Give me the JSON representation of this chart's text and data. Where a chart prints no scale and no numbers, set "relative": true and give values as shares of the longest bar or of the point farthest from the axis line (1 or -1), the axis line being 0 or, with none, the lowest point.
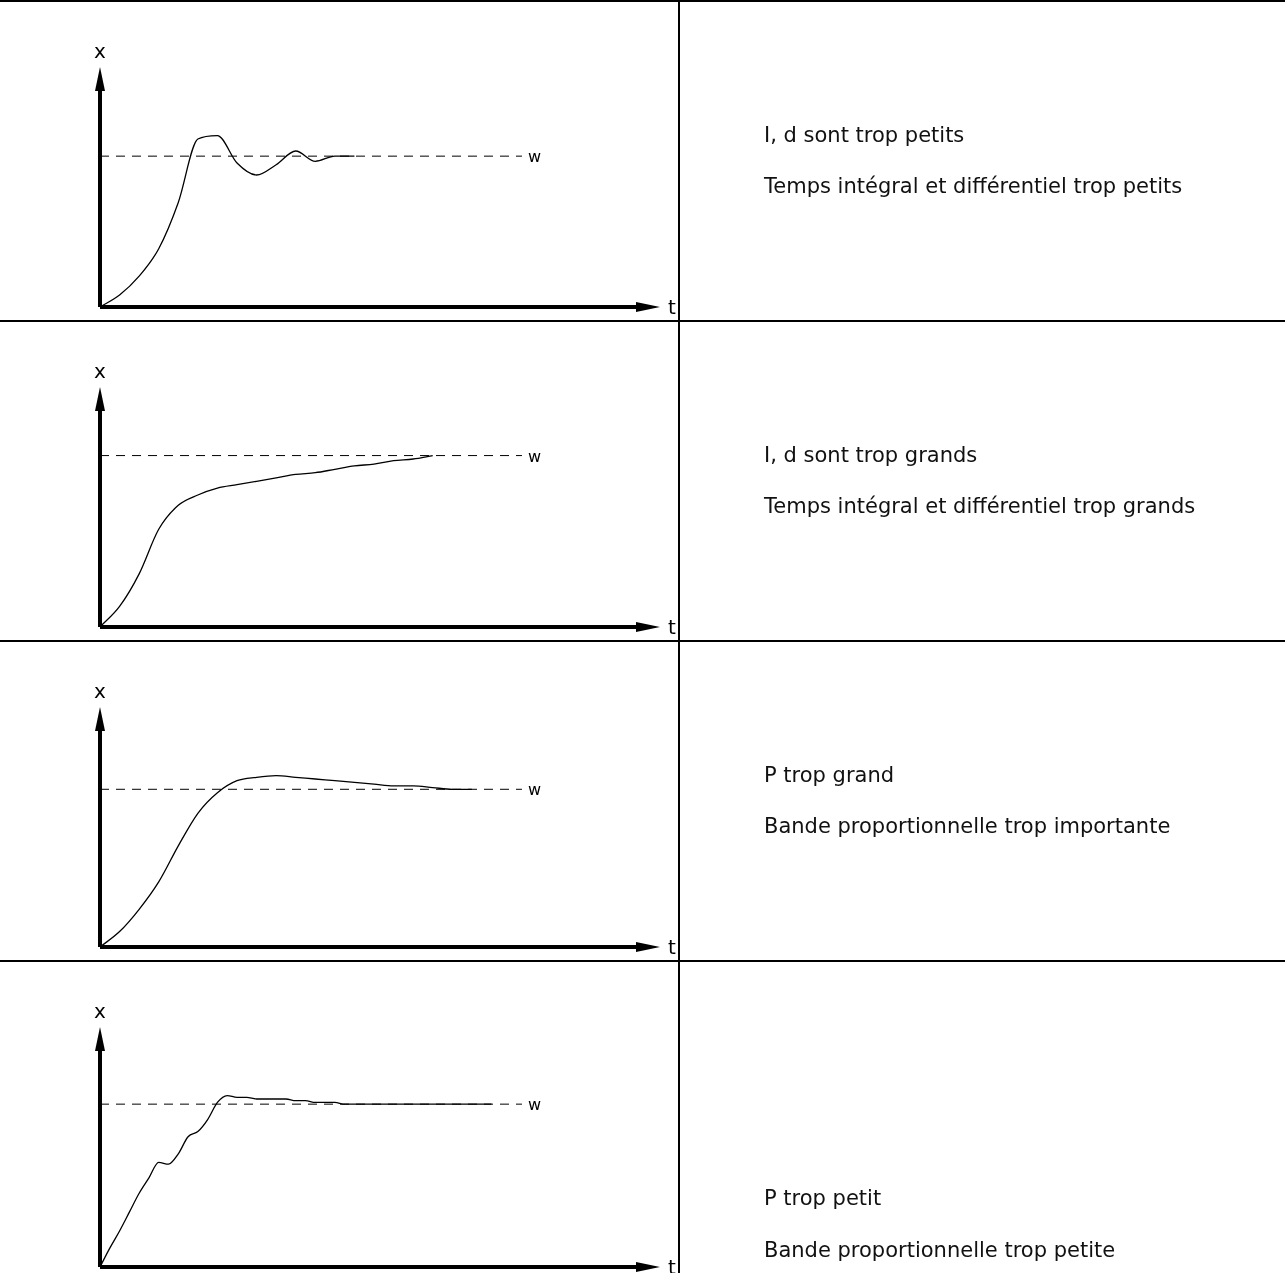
{
  "chart_data": [
    {
      "type": "line",
      "relative": true,
      "xlabel": "t",
      "ylabel": "x",
      "tick_labels": false,
      "marker": "none",
      "color": "#000000",
      "categories": [
        null,
        null,
        null,
        null,
        null,
        null,
        null,
        null,
        null,
        null,
        null,
        null,
        null,
        null,
        null,
        null,
        null,
        null,
        null,
        null,
        null,
        null,
        null,
        null,
        null,
        null,
        null,
        null,
        null
      ],
      "values": [
        0,
        0.07,
        0.18,
        0.34,
        0.61,
        0.98,
        1,
        0.84,
        0.77,
        0.83,
        0.91,
        0.85,
        0.88,
        0.88,
        null,
        null,
        null,
        null,
        null,
        null,
        null,
        null,
        null,
        null,
        null,
        null,
        null,
        null,
        null
      ],
      "ref_lines": [
        {
          "axis": "y",
          "value": 0.88,
          "label": "w",
          "line_style": "dashed"
        }
      ],
      "annotations": [
        "I, d sont trop petits",
        "Temps intégral et différentiel trop petits"
      ]
    },
    {
      "type": "line",
      "relative": true,
      "xlabel": "t",
      "ylabel": "x",
      "tick_labels": false,
      "marker": "none",
      "color": "#000000",
      "categories": [
        null,
        null,
        null,
        null,
        null,
        null,
        null,
        null,
        null,
        null,
        null,
        null,
        null,
        null,
        null,
        null,
        null,
        null,
        null,
        null,
        null,
        null,
        null,
        null,
        null,
        null,
        null,
        null,
        null
      ],
      "values": [
        0,
        0.12,
        0.31,
        0.57,
        0.71,
        0.77,
        0.81,
        0.83,
        0.85,
        0.87,
        0.89,
        0.9,
        0.92,
        0.94,
        0.95,
        0.97,
        0.98,
        1,
        null,
        null,
        null,
        null,
        null,
        null,
        null,
        null,
        null,
        null,
        null
      ],
      "ref_lines": [
        {
          "axis": "y",
          "value": 1,
          "label": "w",
          "line_style": "dashed"
        }
      ],
      "annotations": [
        "I, d sont trop grands",
        "Temps intégral et différentiel trop grands"
      ]
    },
    {
      "type": "line",
      "relative": true,
      "xlabel": "t",
      "ylabel": "x",
      "tick_labels": false,
      "marker": "none",
      "color": "#000000",
      "categories": [
        null,
        null,
        null,
        null,
        null,
        null,
        null,
        null,
        null,
        null,
        null,
        null,
        null,
        null,
        null,
        null,
        null,
        null,
        null,
        null,
        null,
        null,
        null,
        null,
        null,
        null,
        null,
        null,
        null
      ],
      "values": [
        0,
        0.09,
        0.22,
        0.38,
        0.59,
        0.78,
        0.9,
        0.97,
        0.99,
        1,
        0.99,
        0.98,
        0.97,
        0.96,
        0.95,
        0.94,
        0.94,
        0.93,
        0.92,
        0.92,
        null,
        null,
        null,
        null,
        null,
        null,
        null,
        null,
        null
      ],
      "ref_lines": [
        {
          "axis": "y",
          "value": 0.92,
          "label": "w",
          "line_style": "dashed"
        }
      ],
      "annotations": [
        "P trop grand",
        "Bande proportionnelle trop importante"
      ]
    },
    {
      "type": "line",
      "relative": true,
      "xlabel": "t",
      "ylabel": "x",
      "tick_labels": false,
      "marker": "none",
      "color": "#000000",
      "categories": [
        null,
        null,
        null,
        null,
        null,
        null,
        null,
        null,
        null,
        null,
        null,
        null,
        null,
        null,
        null,
        null,
        null,
        null,
        null,
        null,
        null,
        null,
        null,
        null,
        null,
        null,
        null,
        null,
        null,
        null,
        null,
        null,
        null,
        null,
        null,
        null,
        null,
        null,
        null,
        null,
        null,
        null,
        null,
        null,
        null,
        null,
        null,
        null,
        null,
        null,
        null,
        null,
        null,
        null,
        null,
        null,
        null
      ],
      "values": [
        0,
        0.11,
        0.21,
        0.32,
        0.43,
        0.52,
        0.61,
        0.6,
        0.66,
        0.76,
        0.79,
        0.86,
        0.96,
        1,
        0.99,
        0.99,
        0.98,
        0.98,
        0.98,
        0.98,
        0.97,
        0.97,
        0.96,
        0.96,
        0.96,
        0.95,
        0.95,
        0.95,
        0.95,
        0.95,
        0.95,
        0.95,
        0.95,
        0.95,
        0.95,
        0.95,
        0.95,
        0.95,
        0.95,
        0.95,
        0.95,
        null,
        null,
        null,
        null,
        null,
        null,
        null,
        null,
        null,
        null,
        null,
        null,
        null,
        null,
        null,
        null
      ],
      "ref_lines": [
        {
          "axis": "y",
          "value": 0.95,
          "label": "w",
          "line_style": "dashed"
        }
      ],
      "annotations": [
        "P trop petit",
        "Bande proportionnelle trop petite"
      ]
    }
  ]
}
